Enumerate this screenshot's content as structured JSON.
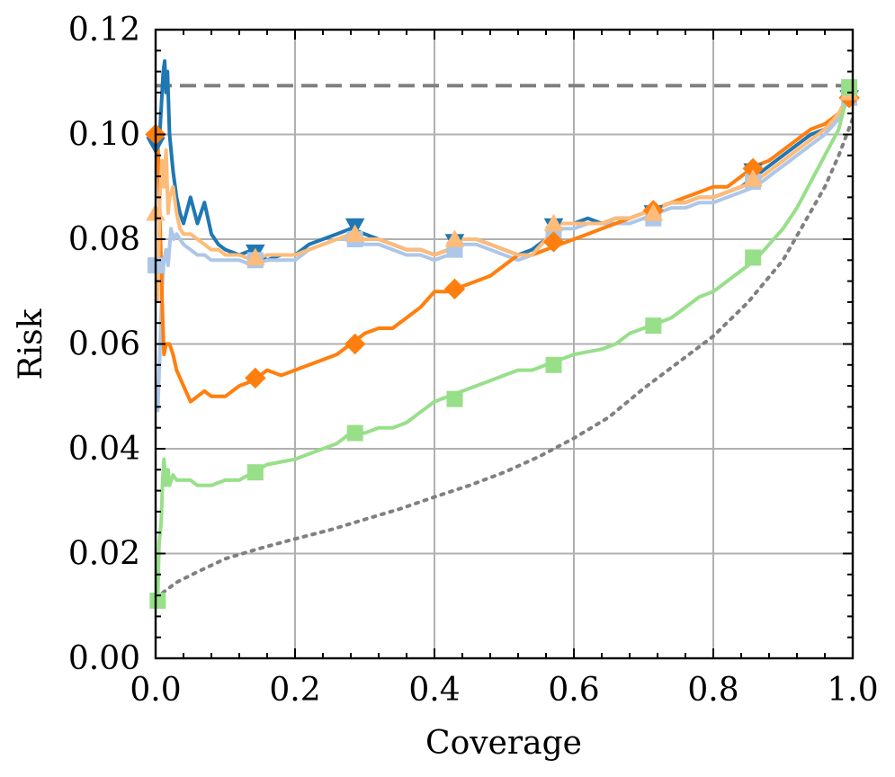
{
  "chart_data": {
    "type": "line",
    "title": "",
    "xlabel": "Coverage",
    "ylabel": "Risk",
    "xlim": [
      0.0,
      1.0
    ],
    "ylim": [
      0.0,
      0.12
    ],
    "xticks": [
      0.0,
      0.2,
      0.4,
      0.6,
      0.8,
      1.0
    ],
    "xtick_labels": [
      "0.0",
      "0.2",
      "0.4",
      "0.6",
      "0.8",
      "1.0"
    ],
    "yticks": [
      0.0,
      0.02,
      0.04,
      0.06,
      0.08,
      0.1,
      0.12
    ],
    "ytick_labels": [
      "0.00",
      "0.02",
      "0.04",
      "0.06",
      "0.08",
      "0.10",
      "0.12"
    ],
    "grid": true,
    "legend": "none",
    "reference_lines": [
      {
        "style": "dashed",
        "color": "#808080",
        "x": [
          0.0,
          1.0
        ],
        "y": [
          0.1093,
          0.1093
        ]
      },
      {
        "style": "dotted",
        "color": "#808080",
        "x": [
          0.01,
          0.03,
          0.06,
          0.1,
          0.15,
          0.2,
          0.25,
          0.3,
          0.35,
          0.4,
          0.45,
          0.5,
          0.55,
          0.6,
          0.65,
          0.7,
          0.75,
          0.8,
          0.85,
          0.9,
          0.93,
          0.96,
          0.98,
          1.0
        ],
        "y": [
          0.0125,
          0.0145,
          0.0165,
          0.019,
          0.021,
          0.0228,
          0.0245,
          0.0265,
          0.0285,
          0.0308,
          0.033,
          0.0355,
          0.0385,
          0.042,
          0.046,
          0.0515,
          0.0565,
          0.0615,
          0.068,
          0.076,
          0.083,
          0.09,
          0.096,
          0.103
        ]
      }
    ],
    "series": [
      {
        "color": "#1f77b4",
        "marker": "triangle-down",
        "x": [
          0.005,
          0.008,
          0.011,
          0.013,
          0.015,
          0.017,
          0.02,
          0.025,
          0.03,
          0.035,
          0.04,
          0.05,
          0.06,
          0.07,
          0.08,
          0.09,
          0.1,
          0.12,
          0.14,
          0.16,
          0.18,
          0.2,
          0.22,
          0.24,
          0.26,
          0.28,
          0.3,
          0.32,
          0.34,
          0.36,
          0.38,
          0.4,
          0.42,
          0.44,
          0.46,
          0.48,
          0.5,
          0.52,
          0.54,
          0.56,
          0.58,
          0.6,
          0.62,
          0.64,
          0.66,
          0.68,
          0.7,
          0.72,
          0.74,
          0.76,
          0.78,
          0.8,
          0.82,
          0.84,
          0.86,
          0.88,
          0.9,
          0.92,
          0.94,
          0.96,
          0.98,
          0.995
        ],
        "y": [
          0.098,
          0.105,
          0.112,
          0.114,
          0.108,
          0.112,
          0.1,
          0.093,
          0.088,
          0.085,
          0.083,
          0.088,
          0.083,
          0.087,
          0.081,
          0.079,
          0.078,
          0.077,
          0.078,
          0.076,
          0.077,
          0.077,
          0.079,
          0.08,
          0.081,
          0.082,
          0.081,
          0.08,
          0.079,
          0.078,
          0.078,
          0.077,
          0.078,
          0.08,
          0.08,
          0.079,
          0.078,
          0.077,
          0.078,
          0.08,
          0.083,
          0.083,
          0.084,
          0.083,
          0.084,
          0.084,
          0.085,
          0.086,
          0.087,
          0.087,
          0.088,
          0.088,
          0.089,
          0.09,
          0.092,
          0.094,
          0.096,
          0.098,
          0.1,
          0.101,
          0.104,
          0.107
        ],
        "marker_x": [
          0.0,
          0.143,
          0.286,
          0.429,
          0.571,
          0.714,
          0.857,
          0.995
        ],
        "marker_y": [
          0.098,
          0.0775,
          0.0825,
          0.0795,
          0.0825,
          0.085,
          0.093,
          0.107
        ]
      },
      {
        "color": "#aec7e8",
        "marker": "square",
        "x": [
          0.003,
          0.006,
          0.009,
          0.012,
          0.015,
          0.018,
          0.022,
          0.026,
          0.03,
          0.035,
          0.04,
          0.05,
          0.06,
          0.07,
          0.08,
          0.09,
          0.1,
          0.12,
          0.14,
          0.16,
          0.18,
          0.2,
          0.22,
          0.24,
          0.26,
          0.28,
          0.3,
          0.32,
          0.34,
          0.36,
          0.38,
          0.4,
          0.42,
          0.44,
          0.46,
          0.48,
          0.5,
          0.52,
          0.54,
          0.56,
          0.58,
          0.6,
          0.62,
          0.64,
          0.66,
          0.68,
          0.7,
          0.72,
          0.74,
          0.76,
          0.78,
          0.8,
          0.82,
          0.84,
          0.86,
          0.88,
          0.9,
          0.92,
          0.94,
          0.96,
          0.98,
          0.995
        ],
        "y": [
          0.047,
          0.058,
          0.07,
          0.076,
          0.078,
          0.075,
          0.082,
          0.08,
          0.081,
          0.08,
          0.079,
          0.078,
          0.077,
          0.077,
          0.076,
          0.076,
          0.076,
          0.076,
          0.075,
          0.076,
          0.076,
          0.076,
          0.078,
          0.079,
          0.08,
          0.08,
          0.079,
          0.079,
          0.078,
          0.077,
          0.077,
          0.076,
          0.077,
          0.079,
          0.079,
          0.078,
          0.077,
          0.076,
          0.077,
          0.08,
          0.082,
          0.082,
          0.083,
          0.083,
          0.083,
          0.083,
          0.084,
          0.085,
          0.086,
          0.086,
          0.087,
          0.087,
          0.088,
          0.089,
          0.09,
          0.092,
          0.094,
          0.096,
          0.098,
          0.1,
          0.103,
          0.107
        ],
        "marker_x": [
          0.0,
          0.143,
          0.286,
          0.429,
          0.571,
          0.714,
          0.857,
          0.995
        ],
        "marker_y": [
          0.075,
          0.076,
          0.08,
          0.078,
          0.081,
          0.084,
          0.091,
          0.107
        ]
      },
      {
        "color": "#ff7f0e",
        "marker": "diamond",
        "x": [
          0.003,
          0.005,
          0.008,
          0.01,
          0.012,
          0.015,
          0.02,
          0.025,
          0.03,
          0.04,
          0.05,
          0.06,
          0.07,
          0.08,
          0.09,
          0.1,
          0.12,
          0.14,
          0.16,
          0.18,
          0.2,
          0.22,
          0.24,
          0.26,
          0.28,
          0.3,
          0.32,
          0.34,
          0.36,
          0.38,
          0.4,
          0.42,
          0.44,
          0.46,
          0.48,
          0.5,
          0.52,
          0.54,
          0.56,
          0.58,
          0.6,
          0.62,
          0.64,
          0.66,
          0.68,
          0.7,
          0.72,
          0.74,
          0.76,
          0.78,
          0.8,
          0.82,
          0.84,
          0.86,
          0.88,
          0.9,
          0.92,
          0.94,
          0.96,
          0.98,
          0.995
        ],
        "y": [
          0.1,
          0.09,
          0.075,
          0.065,
          0.058,
          0.06,
          0.06,
          0.058,
          0.055,
          0.052,
          0.049,
          0.05,
          0.051,
          0.05,
          0.05,
          0.05,
          0.052,
          0.053,
          0.055,
          0.054,
          0.055,
          0.056,
          0.057,
          0.058,
          0.06,
          0.062,
          0.063,
          0.063,
          0.065,
          0.067,
          0.07,
          0.07,
          0.071,
          0.072,
          0.073,
          0.075,
          0.077,
          0.077,
          0.078,
          0.079,
          0.08,
          0.081,
          0.082,
          0.083,
          0.084,
          0.085,
          0.086,
          0.087,
          0.088,
          0.089,
          0.09,
          0.09,
          0.092,
          0.094,
          0.095,
          0.097,
          0.099,
          0.101,
          0.102,
          0.104,
          0.107
        ],
        "marker_x": [
          0.0,
          0.143,
          0.286,
          0.429,
          0.571,
          0.714,
          0.857,
          0.995
        ],
        "marker_y": [
          0.1,
          0.0535,
          0.06,
          0.0705,
          0.0795,
          0.0855,
          0.0935,
          0.107
        ]
      },
      {
        "color": "#ffbb78",
        "marker": "triangle-up",
        "x": [
          0.003,
          0.006,
          0.009,
          0.012,
          0.015,
          0.018,
          0.02,
          0.025,
          0.03,
          0.035,
          0.04,
          0.05,
          0.06,
          0.07,
          0.08,
          0.09,
          0.1,
          0.12,
          0.14,
          0.16,
          0.18,
          0.2,
          0.22,
          0.24,
          0.26,
          0.28,
          0.3,
          0.32,
          0.34,
          0.36,
          0.38,
          0.4,
          0.42,
          0.44,
          0.46,
          0.48,
          0.5,
          0.52,
          0.54,
          0.56,
          0.58,
          0.6,
          0.62,
          0.64,
          0.66,
          0.68,
          0.7,
          0.72,
          0.74,
          0.76,
          0.78,
          0.8,
          0.82,
          0.84,
          0.86,
          0.88,
          0.9,
          0.92,
          0.94,
          0.96,
          0.98,
          0.995
        ],
        "y": [
          0.068,
          0.088,
          0.095,
          0.09,
          0.097,
          0.085,
          0.088,
          0.09,
          0.085,
          0.082,
          0.081,
          0.081,
          0.08,
          0.079,
          0.078,
          0.078,
          0.077,
          0.077,
          0.076,
          0.077,
          0.077,
          0.077,
          0.078,
          0.079,
          0.08,
          0.081,
          0.08,
          0.08,
          0.079,
          0.078,
          0.078,
          0.077,
          0.078,
          0.08,
          0.08,
          0.079,
          0.078,
          0.077,
          0.077,
          0.08,
          0.083,
          0.083,
          0.083,
          0.083,
          0.084,
          0.084,
          0.085,
          0.086,
          0.087,
          0.087,
          0.088,
          0.088,
          0.089,
          0.09,
          0.091,
          0.093,
          0.095,
          0.097,
          0.099,
          0.101,
          0.104,
          0.108
        ],
        "marker_x": [
          0.0,
          0.143,
          0.286,
          0.429,
          0.571,
          0.714,
          0.857,
          0.995
        ],
        "marker_y": [
          0.085,
          0.0765,
          0.081,
          0.08,
          0.083,
          0.085,
          0.0915,
          0.108
        ]
      },
      {
        "color": "#98df8a",
        "marker": "square",
        "x": [
          0.003,
          0.005,
          0.008,
          0.01,
          0.012,
          0.015,
          0.018,
          0.02,
          0.025,
          0.03,
          0.04,
          0.05,
          0.06,
          0.08,
          0.1,
          0.12,
          0.14,
          0.16,
          0.18,
          0.2,
          0.22,
          0.24,
          0.26,
          0.28,
          0.3,
          0.32,
          0.34,
          0.36,
          0.38,
          0.4,
          0.42,
          0.44,
          0.46,
          0.48,
          0.5,
          0.52,
          0.54,
          0.56,
          0.58,
          0.6,
          0.62,
          0.64,
          0.66,
          0.68,
          0.7,
          0.72,
          0.74,
          0.76,
          0.78,
          0.8,
          0.82,
          0.84,
          0.86,
          0.88,
          0.9,
          0.92,
          0.94,
          0.96,
          0.98,
          0.995
        ],
        "y": [
          0.011,
          0.022,
          0.026,
          0.034,
          0.038,
          0.033,
          0.036,
          0.033,
          0.035,
          0.034,
          0.034,
          0.034,
          0.033,
          0.033,
          0.034,
          0.034,
          0.0355,
          0.037,
          0.0375,
          0.038,
          0.039,
          0.04,
          0.041,
          0.043,
          0.043,
          0.044,
          0.044,
          0.045,
          0.047,
          0.049,
          0.05,
          0.051,
          0.052,
          0.053,
          0.054,
          0.055,
          0.055,
          0.056,
          0.057,
          0.058,
          0.0585,
          0.059,
          0.06,
          0.062,
          0.063,
          0.064,
          0.065,
          0.067,
          0.069,
          0.07,
          0.072,
          0.074,
          0.076,
          0.079,
          0.082,
          0.086,
          0.091,
          0.096,
          0.101,
          0.109
        ],
        "marker_x": [
          0.003,
          0.143,
          0.286,
          0.429,
          0.571,
          0.714,
          0.857,
          0.995
        ],
        "marker_y": [
          0.011,
          0.0355,
          0.043,
          0.0495,
          0.056,
          0.0635,
          0.0765,
          0.109
        ]
      }
    ]
  }
}
